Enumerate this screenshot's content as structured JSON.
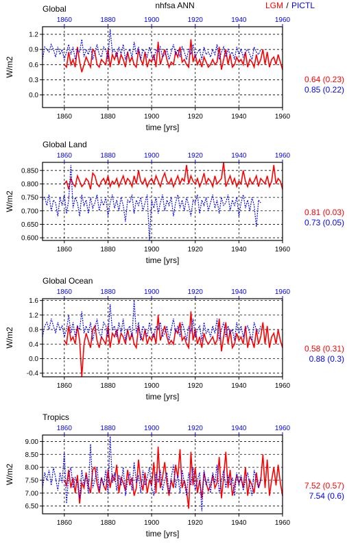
{
  "header": {
    "title": "nhfsa ANN",
    "legend_lgm": "LGM",
    "legend_sep": "/",
    "legend_pictl": "PICTL"
  },
  "colors": {
    "lgm": "#ff0000",
    "pictl": "#0000ff",
    "axis": "#000000"
  },
  "chart_data": [
    {
      "type": "line",
      "panel_title": "Global",
      "xlabel": "time [yrs]",
      "ylabel": "W/m2",
      "xlim_bottom": [
        1850,
        1960
      ],
      "xticks_bottom": [
        "1860",
        "1880",
        "1900",
        "1920",
        "1940",
        "1960"
      ],
      "xlim_top": [
        1850,
        1960
      ],
      "xticks_top": [
        "1860",
        "1880",
        "1900",
        "1920",
        "1940",
        "1960"
      ],
      "ylim": [
        -0.25,
        1.35
      ],
      "yticks": [
        "0.0",
        "0.3",
        "0.6",
        "0.9",
        "1.2"
      ],
      "grid": "dashed",
      "stats": {
        "lgm": "0.64 (0.23)",
        "pictl": "0.85 (0.22)"
      },
      "series": [
        {
          "key": "lgm",
          "x_start": 1860,
          "x_end": 1960,
          "values": [
            0.6,
            0.55,
            0.85,
            0.6,
            0.7,
            0.55,
            0.95,
            0.65,
            0.45,
            0.6,
            0.75,
            0.65,
            0.55,
            0.9,
            0.85,
            0.6,
            0.55,
            0.7,
            0.65,
            0.6,
            0.9,
            0.55,
            0.8,
            0.7,
            0.85,
            0.6,
            0.8,
            0.7,
            0.55,
            0.85,
            0.65,
            0.75,
            0.6,
            0.55,
            0.9,
            0.7,
            0.6,
            0.85,
            0.55,
            0.7,
            0.65,
            0.8,
            0.55,
            1.05,
            0.6,
            0.75,
            0.9,
            0.7,
            0.55,
            0.65,
            0.6,
            0.85,
            0.75,
            0.95,
            0.65,
            0.7,
            0.6,
            0.55,
            1.1,
            0.65,
            0.8,
            0.6,
            0.7,
            0.55,
            0.75,
            0.65,
            0.55,
            0.6,
            0.7,
            0.6,
            0.65,
            0.95,
            0.5,
            0.7,
            0.9,
            0.6,
            0.8,
            0.55,
            0.6,
            0.75,
            0.65,
            0.7,
            0.6,
            0.85,
            0.55,
            0.7,
            0.65,
            0.55,
            0.8,
            0.6,
            0.7,
            0.9,
            0.6,
            0.85,
            0.55,
            0.7,
            0.75,
            0.6,
            0.8,
            0.65,
            0.5
          ]
        },
        {
          "key": "pictl",
          "x_start": 1850,
          "x_end": 1950,
          "values": [
            0.7,
            0.95,
            0.9,
            0.85,
            1.0,
            0.9,
            0.75,
            0.95,
            0.8,
            0.9,
            0.7,
            0.85,
            1.0,
            0.8,
            0.95,
            0.7,
            0.9,
            0.85,
            1.1,
            0.75,
            0.9,
            0.8,
            0.95,
            0.7,
            0.85,
            1.0,
            0.8,
            0.75,
            0.95,
            0.9,
            0.7,
            1.3,
            0.85,
            0.9,
            0.75,
            0.95,
            0.8,
            1.0,
            0.7,
            0.85,
            0.9,
            0.75,
            1.05,
            0.8,
            0.95,
            0.7,
            0.9,
            0.85,
            0.75,
            0.95,
            0.8,
            0.7,
            0.9,
            0.85,
            0.95,
            0.75,
            0.8,
            0.9,
            0.7,
            0.85,
            1.0,
            0.8,
            0.9,
            0.75,
            0.95,
            0.85,
            0.7,
            0.9,
            0.8,
            1.0,
            0.75,
            0.85,
            0.9,
            0.7,
            0.95,
            0.8,
            0.85,
            0.75,
            0.9,
            0.8,
            1.0,
            0.7,
            0.85,
            0.95,
            0.75,
            0.9,
            0.8,
            0.85,
            0.7,
            0.95,
            0.8,
            0.9,
            0.75,
            0.85,
            0.9,
            0.8,
            0.7,
            0.95,
            0.85,
            0.8,
            0.9
          ]
        }
      ]
    },
    {
      "type": "line",
      "panel_title": "Global Land",
      "xlabel": "time [yrs]",
      "ylabel": "W/m2",
      "xlim_bottom": [
        1850,
        1960
      ],
      "xticks_bottom": [
        "1860",
        "1880",
        "1900",
        "1920",
        "1940",
        "1960"
      ],
      "xlim_top": [
        1850,
        1960
      ],
      "xticks_top": [
        "1860",
        "1880",
        "1900",
        "1920",
        "1940",
        "1960"
      ],
      "ylim": [
        0.59,
        0.88
      ],
      "yticks": [
        "0.600",
        "0.650",
        "0.700",
        "0.750",
        "0.800",
        "0.850"
      ],
      "grid": "dashed",
      "stats": {
        "lgm": "0.81 (0.03)",
        "pictl": "0.73 (0.05)"
      },
      "series": [
        {
          "key": "lgm",
          "x_start": 1860,
          "x_end": 1960,
          "values": [
            0.8,
            0.81,
            0.78,
            0.82,
            0.8,
            0.79,
            0.83,
            0.81,
            0.79,
            0.8,
            0.82,
            0.81,
            0.78,
            0.84,
            0.83,
            0.8,
            0.79,
            0.81,
            0.82,
            0.8,
            0.83,
            0.79,
            0.81,
            0.8,
            0.82,
            0.79,
            0.81,
            0.83,
            0.8,
            0.82,
            0.81,
            0.79,
            0.83,
            0.8,
            0.85,
            0.81,
            0.8,
            0.82,
            0.79,
            0.81,
            0.82,
            0.8,
            0.83,
            0.81,
            0.79,
            0.82,
            0.84,
            0.81,
            0.8,
            0.82,
            0.79,
            0.81,
            0.83,
            0.8,
            0.82,
            0.81,
            0.87,
            0.8,
            0.83,
            0.81,
            0.8,
            0.82,
            0.79,
            0.81,
            0.84,
            0.8,
            0.82,
            0.81,
            0.79,
            0.83,
            0.8,
            0.81,
            0.82,
            0.88,
            0.79,
            0.81,
            0.83,
            0.8,
            0.82,
            0.79,
            0.81,
            0.8,
            0.85,
            0.81,
            0.79,
            0.82,
            0.8,
            0.81,
            0.83,
            0.79,
            0.82,
            0.81,
            0.8,
            0.83,
            0.79,
            0.81,
            0.87,
            0.8,
            0.82,
            0.81,
            0.78
          ]
        },
        {
          "key": "pictl",
          "x_start": 1850,
          "x_end": 1950,
          "values": [
            0.74,
            0.75,
            0.72,
            0.76,
            0.7,
            0.74,
            0.73,
            0.68,
            0.75,
            0.72,
            0.76,
            0.69,
            0.74,
            0.87,
            0.71,
            0.75,
            0.73,
            0.68,
            0.76,
            0.72,
            0.74,
            0.69,
            0.75,
            0.71,
            0.73,
            0.76,
            0.7,
            0.74,
            0.72,
            0.75,
            0.68,
            0.73,
            0.76,
            0.71,
            0.74,
            0.7,
            0.75,
            0.72,
            0.66,
            0.74,
            0.73,
            0.76,
            0.69,
            0.74,
            0.72,
            0.75,
            0.7,
            0.73,
            0.76,
            0.59,
            0.74,
            0.71,
            0.75,
            0.69,
            0.73,
            0.76,
            0.7,
            0.74,
            0.72,
            0.75,
            0.68,
            0.73,
            0.76,
            0.71,
            0.74,
            0.7,
            0.75,
            0.72,
            0.68,
            0.74,
            0.73,
            0.76,
            0.69,
            0.74,
            0.72,
            0.75,
            0.7,
            0.73,
            0.76,
            0.71,
            0.74,
            0.69,
            0.75,
            0.72,
            0.73,
            0.76,
            0.7,
            0.74,
            0.72,
            0.75,
            0.68,
            0.73,
            0.76,
            0.71,
            0.74,
            0.7,
            0.75,
            0.72,
            0.64,
            0.74,
            0.73
          ]
        }
      ]
    },
    {
      "type": "line",
      "panel_title": "Global Ocean",
      "xlabel": "time [yrs]",
      "ylabel": "W/m2",
      "xlim_bottom": [
        1850,
        1960
      ],
      "xticks_bottom": [
        "1860",
        "1880",
        "1900",
        "1920",
        "1940",
        "1960"
      ],
      "xlim_top": [
        1850,
        1960
      ],
      "xticks_top": [
        "1860",
        "1880",
        "1900",
        "1920",
        "1940",
        "1960"
      ],
      "ylim": [
        -0.5,
        1.65
      ],
      "yticks": [
        "-0.4",
        "0.0",
        "0.4",
        "0.8",
        "1.2",
        "1.6"
      ],
      "grid": "dashed",
      "stats": {
        "lgm": "0.58 (0.31)",
        "pictl": "0.88 (0.3)"
      },
      "series": [
        {
          "key": "lgm",
          "x_start": 1860,
          "x_end": 1960,
          "values": [
            0.5,
            0.4,
            0.9,
            0.5,
            0.6,
            0.4,
            0.9,
            0.5,
            -0.5,
            0.4,
            0.7,
            0.5,
            0.3,
            0.8,
            0.9,
            0.5,
            0.3,
            0.6,
            0.5,
            0.4,
            0.9,
            0.3,
            0.7,
            0.6,
            0.8,
            0.4,
            0.7,
            0.6,
            0.4,
            0.8,
            0.5,
            0.7,
            0.4,
            0.3,
            0.9,
            0.6,
            0.5,
            0.8,
            0.4,
            0.6,
            0.5,
            0.7,
            0.4,
            1.2,
            0.5,
            0.7,
            0.9,
            0.6,
            0.4,
            0.5,
            0.4,
            0.8,
            0.7,
            1.0,
            0.5,
            0.6,
            0.4,
            0.3,
            1.3,
            0.5,
            0.8,
            0.4,
            0.6,
            0.3,
            0.7,
            0.5,
            0.4,
            0.5,
            0.6,
            0.4,
            0.5,
            1.1,
            0.2,
            0.6,
            1.0,
            0.4,
            0.8,
            0.3,
            0.4,
            0.7,
            0.5,
            0.6,
            0.4,
            0.9,
            0.3,
            0.6,
            0.5,
            0.3,
            0.8,
            0.4,
            0.6,
            1.0,
            0.4,
            0.9,
            0.3,
            0.6,
            0.7,
            0.4,
            0.8,
            0.5,
            0.3
          ]
        },
        {
          "key": "pictl",
          "x_start": 1850,
          "x_end": 1950,
          "values": [
            0.6,
            0.9,
            1.0,
            0.8,
            1.1,
            0.9,
            0.7,
            1.0,
            0.8,
            0.9,
            0.6,
            0.8,
            1.2,
            0.7,
            1.0,
            0.6,
            0.9,
            0.8,
            1.3,
            0.7,
            0.9,
            0.7,
            1.0,
            0.5,
            0.8,
            1.1,
            0.7,
            0.6,
            1.0,
            0.9,
            0.6,
            1.5,
            0.8,
            0.9,
            0.6,
            1.0,
            0.7,
            1.1,
            0.5,
            0.8,
            0.9,
            0.6,
            1.6,
            0.7,
            1.0,
            0.5,
            0.9,
            0.8,
            0.6,
            1.0,
            0.7,
            0.6,
            0.9,
            0.8,
            1.0,
            0.6,
            0.7,
            0.9,
            0.5,
            0.8,
            1.1,
            0.7,
            0.9,
            0.6,
            1.0,
            0.8,
            0.5,
            0.9,
            0.7,
            1.1,
            0.6,
            0.8,
            0.9,
            0.5,
            1.0,
            0.7,
            0.8,
            0.6,
            0.9,
            0.7,
            1.1,
            0.5,
            0.8,
            1.0,
            0.6,
            0.9,
            0.7,
            0.8,
            0.5,
            1.0,
            0.7,
            0.9,
            0.6,
            0.8,
            0.9,
            0.7,
            0.5,
            1.0,
            0.8,
            0.7,
            0.9
          ]
        }
      ]
    },
    {
      "type": "line",
      "panel_title": "Tropics",
      "xlabel": "time [yrs]",
      "ylabel": "W/m2",
      "xlim_bottom": [
        1850,
        1960
      ],
      "xticks_bottom": [
        "1860",
        "1880",
        "1900",
        "1920",
        "1940",
        "1960"
      ],
      "xlim_top": [
        1850,
        1960
      ],
      "xticks_top": [
        "1860",
        "1880",
        "1900",
        "1920",
        "1940",
        "1960"
      ],
      "ylim": [
        6.2,
        9.25
      ],
      "yticks": [
        "6.50",
        "7.00",
        "7.50",
        "8.00",
        "8.50",
        "9.00"
      ],
      "grid": "dashed",
      "stats": {
        "lgm": "7.52 (0.57)",
        "pictl": "7.54 (0.6)"
      },
      "series": [
        {
          "key": "lgm",
          "x_start": 1860,
          "x_end": 1960,
          "values": [
            7.5,
            7.3,
            7.9,
            7.2,
            7.6,
            7.0,
            7.7,
            6.6,
            7.4,
            7.2,
            7.8,
            7.3,
            7.0,
            7.9,
            8.0,
            7.4,
            7.0,
            7.6,
            7.3,
            7.1,
            7.9,
            7.2,
            7.7,
            7.5,
            8.1,
            7.0,
            7.6,
            7.4,
            7.1,
            7.9,
            7.3,
            7.6,
            6.9,
            7.2,
            8.3,
            7.5,
            7.1,
            7.8,
            7.0,
            7.5,
            7.3,
            8.2,
            7.0,
            8.8,
            7.2,
            7.6,
            8.2,
            7.4,
            6.9,
            7.5,
            7.2,
            8.1,
            7.6,
            8.7,
            7.2,
            7.5,
            7.1,
            6.4,
            8.6,
            7.3,
            8.0,
            7.0,
            7.5,
            6.8,
            7.8,
            7.4,
            7.1,
            7.3,
            7.7,
            7.2,
            7.4,
            8.4,
            6.8,
            7.6,
            8.6,
            7.2,
            7.9,
            6.9,
            7.3,
            7.7,
            7.4,
            7.6,
            7.2,
            8.0,
            6.9,
            7.5,
            7.3,
            7.0,
            7.8,
            7.2,
            7.5,
            8.5,
            7.2,
            8.3,
            6.9,
            7.5,
            8.0,
            7.3,
            8.1,
            7.4,
            6.9
          ]
        },
        {
          "key": "pictl",
          "x_start": 1850,
          "x_end": 1950,
          "values": [
            7.2,
            7.8,
            7.5,
            7.9,
            7.3,
            8.0,
            7.6,
            7.1,
            7.8,
            7.4,
            8.6,
            6.6,
            7.7,
            8.0,
            7.2,
            7.6,
            7.4,
            6.8,
            7.9,
            7.3,
            7.7,
            7.0,
            8.9,
            7.2,
            7.5,
            8.0,
            7.1,
            7.6,
            7.3,
            7.9,
            7.0,
            9.2,
            7.4,
            7.8,
            7.1,
            7.7,
            7.3,
            8.0,
            6.9,
            7.5,
            7.8,
            7.1,
            8.2,
            7.4,
            7.7,
            7.0,
            7.9,
            7.3,
            7.6,
            8.0,
            7.2,
            6.9,
            7.8,
            7.4,
            7.9,
            7.1,
            7.5,
            7.8,
            7.0,
            7.6,
            8.1,
            7.2,
            7.7,
            7.0,
            7.9,
            7.4,
            6.9,
            7.8,
            7.3,
            8.0,
            7.1,
            7.5,
            7.8,
            6.3,
            7.9,
            7.3,
            7.6,
            7.0,
            7.8,
            7.4,
            8.1,
            7.0,
            7.5,
            7.9,
            7.2,
            7.7,
            7.3,
            7.6,
            6.9,
            7.8,
            7.3,
            7.7,
            7.1,
            7.5,
            7.8,
            7.3,
            6.9,
            7.9,
            7.5,
            7.2,
            7.6
          ]
        }
      ]
    }
  ]
}
